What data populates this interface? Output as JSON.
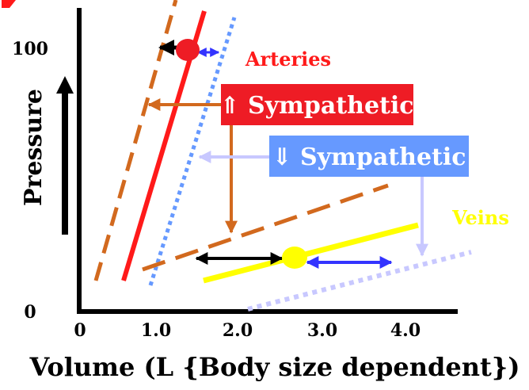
{
  "colors": {
    "arteries": "#ff1a1a",
    "veins": "#ffff00",
    "sympathetic_up": "#d2691e",
    "sympathetic_down": "#6699ff",
    "sympathetic_down_line": "#c8c8ff",
    "axis": "#000000",
    "black_arrow": "#000000",
    "blue_arrow": "#3333ff"
  },
  "axes": {
    "x_label": "Volume (L {Body size dependent})",
    "y_label": "Pressure",
    "x_ticks": [
      "0",
      "1.0",
      "2.0",
      "3.0",
      "4.0"
    ],
    "y_ticks": [
      "0",
      "100"
    ]
  },
  "labels": {
    "arteries": "Arteries",
    "veins": "Veins",
    "sympathetic_up": "⇑ Sympathetic",
    "sympathetic_down": "⇓ Sympathetic"
  }
}
